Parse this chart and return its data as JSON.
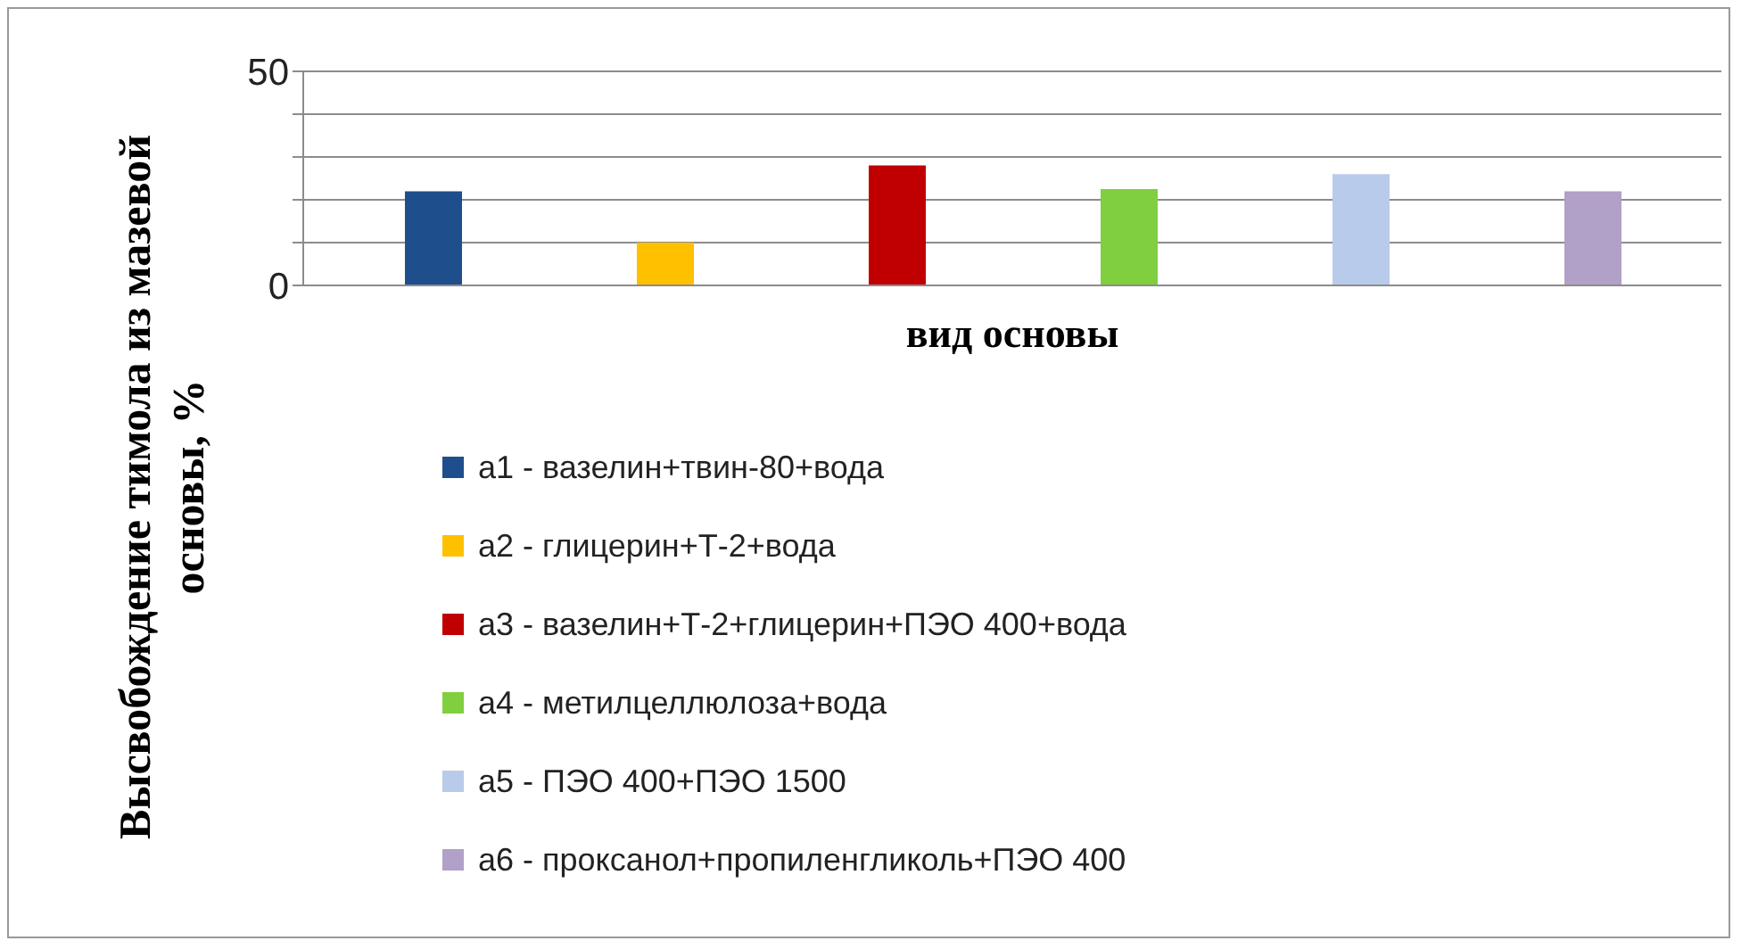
{
  "chart_data": {
    "type": "bar",
    "xlabel": "вид основы",
    "ylabel": "Высвобождение тимола из мазевой основы, %",
    "categories": [
      null
    ],
    "series": [
      {
        "name": "а1 - вазелин+твин-80+вода",
        "color": "#1f4e8c",
        "values": [
          22
        ]
      },
      {
        "name": "а2 - глицерин+Т-2+вода",
        "color": "#ffc000",
        "values": [
          10
        ]
      },
      {
        "name": "а3 - вазелин+Т-2+глицерин+ПЭО 400+вода",
        "color": "#c00000",
        "values": [
          28
        ]
      },
      {
        "name": "а4 - метилцеллюлоза+вода",
        "color": "#7fcf3f",
        "values": [
          22.5
        ]
      },
      {
        "name": "а5 - ПЭО 400+ПЭО 1500",
        "color": "#b9cbea",
        "values": [
          26
        ]
      },
      {
        "name": "а6 - проксанол+пропиленгликоль+ПЭО 400",
        "color": "#b1a0c7",
        "values": [
          22
        ]
      }
    ],
    "ylim": [
      0,
      50
    ],
    "yticks": [
      0,
      {
        "value": 10,
        "label": null
      },
      {
        "value": 20,
        "label": null
      },
      {
        "value": 30,
        "label": null
      },
      {
        "value": 40,
        "label": null
      },
      50
    ],
    "grid": "y",
    "legend": "bottom"
  }
}
